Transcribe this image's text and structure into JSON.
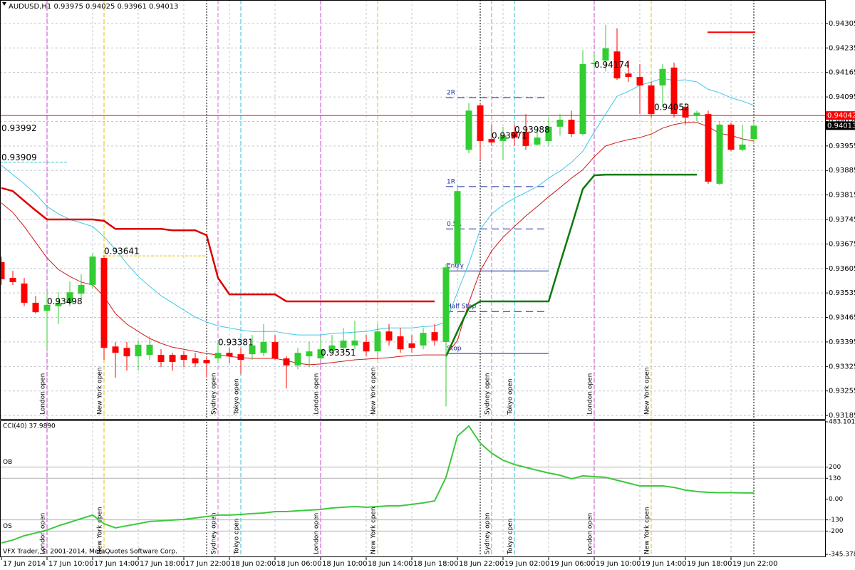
{
  "chart_data": [
    {
      "type": "candlestick",
      "title": "AUDUSD,H1 0.93975 0.94025 0.93961 0.94013",
      "categories": [
        "17 Jun 2014",
        null,
        null,
        null,
        "17 Jun 10:00",
        null,
        null,
        null,
        "17 Jun 14:00",
        null,
        null,
        null,
        "17 Jun 18:00",
        null,
        null,
        null,
        "17 Jun 22:00",
        null,
        null,
        null,
        "18 Jun 02:00",
        null,
        null,
        null,
        "18 Jun 06:00",
        null,
        null,
        null,
        "18 Jun 10:00",
        null,
        null,
        null,
        "18 Jun 14:00",
        null,
        null,
        null,
        "18 Jun 18:00",
        null,
        null,
        null,
        "18 Jun 22:00",
        null,
        null,
        null,
        "19 Jun 02:00",
        null,
        null,
        null,
        "19 Jun 06:00",
        null,
        null,
        null,
        "19 Jun 10:00",
        null,
        null,
        null,
        "19 Jun 14:00",
        null,
        null,
        null,
        "19 Jun 18:00",
        null,
        null,
        null,
        "19 Jun 22:00",
        null,
        null
      ],
      "open": [
        0.93623,
        0.93578,
        0.93562,
        0.93507,
        0.93484,
        0.93497,
        0.93507,
        0.93533,
        0.93558,
        0.93635,
        0.93382,
        0.93378,
        0.93354,
        0.93358,
        0.93358,
        0.93358,
        0.93358,
        0.93348,
        0.93344,
        0.93348,
        0.93364,
        0.9336,
        0.9336,
        0.93364,
        0.93395,
        0.93348,
        0.93328,
        0.93354,
        0.93348,
        0.9337,
        0.93378,
        0.93385,
        0.93395,
        0.93368,
        0.93425,
        0.93411,
        0.93391,
        0.93385,
        0.93423,
        0.93395,
        0.93619,
        0.93944,
        0.94071,
        0.93975,
        0.93969,
        0.93995,
        0.93995,
        0.93959,
        0.93969,
        0.9401,
        0.9403,
        0.93989,
        0.94189,
        0.94199,
        0.94225,
        0.94162,
        0.94152,
        0.94128,
        0.94128,
        0.94179,
        0.94067,
        0.94042,
        0.94046,
        0.93847,
        0.94016,
        0.93944,
        0.93975
      ],
      "high": [
        0.93639,
        0.93598,
        0.93578,
        0.93527,
        0.93537,
        0.93537,
        0.93568,
        0.93588,
        0.93649,
        0.93643,
        0.93395,
        0.93395,
        0.93399,
        0.93411,
        0.93374,
        0.93364,
        0.9337,
        0.93364,
        0.93354,
        0.93395,
        0.93378,
        0.93378,
        0.93415,
        0.93446,
        0.93415,
        0.93354,
        0.93378,
        0.93395,
        0.93405,
        0.93415,
        0.93435,
        0.93456,
        0.93415,
        0.93446,
        0.93446,
        0.93435,
        0.93415,
        0.93435,
        0.93446,
        0.93619,
        0.93843,
        0.94077,
        0.94077,
        0.94016,
        0.9401,
        0.94016,
        0.94046,
        0.94006,
        0.94036,
        0.94046,
        0.94056,
        0.94229,
        0.94219,
        0.94301,
        0.94291,
        0.94199,
        0.94189,
        0.94138,
        0.94189,
        0.94193,
        0.94077,
        0.94056,
        0.94056,
        0.94026,
        0.94022,
        0.94016,
        0.94025
      ],
      "low": [
        0.93558,
        0.93558,
        0.93497,
        0.93476,
        0.93374,
        0.93446,
        0.93497,
        0.93517,
        0.93547,
        0.93344,
        0.93293,
        0.93313,
        0.93313,
        0.93344,
        0.93323,
        0.93313,
        0.93323,
        0.93323,
        0.93293,
        0.93334,
        0.93334,
        0.93303,
        0.93344,
        0.93354,
        0.93344,
        0.93262,
        0.93317,
        0.93323,
        0.93344,
        0.93364,
        0.93364,
        0.93374,
        0.93354,
        0.93344,
        0.93385,
        0.93364,
        0.93364,
        0.93374,
        0.93385,
        0.93211,
        0.93598,
        0.93934,
        0.93914,
        0.93955,
        0.93914,
        0.93955,
        0.93944,
        0.93955,
        0.93955,
        0.93985,
        0.93981,
        0.93985,
        0.94179,
        0.94168,
        0.94144,
        0.94138,
        0.94046,
        0.94036,
        0.94067,
        0.94036,
        0.94016,
        0.94026,
        0.93847,
        0.93843,
        0.9394,
        0.9394,
        0.93961
      ],
      "close": [
        0.93574,
        0.93566,
        0.93507,
        0.9348,
        0.93501,
        0.93507,
        0.93537,
        0.93558,
        0.93639,
        0.93378,
        0.93364,
        0.93354,
        0.93387,
        0.93387,
        0.93338,
        0.93338,
        0.93344,
        0.93334,
        0.93334,
        0.93364,
        0.93354,
        0.93344,
        0.93385,
        0.93395,
        0.93348,
        0.93328,
        0.93364,
        0.93368,
        0.93374,
        0.93385,
        0.93399,
        0.93399,
        0.93368,
        0.93425,
        0.93399,
        0.93374,
        0.93378,
        0.93421,
        0.93399,
        0.93608,
        0.93826,
        0.94056,
        0.93969,
        0.93965,
        0.93985,
        0.93979,
        0.93955,
        0.93979,
        0.9401,
        0.9403,
        0.93989,
        0.94189,
        0.94193,
        0.94234,
        0.94148,
        0.94152,
        0.94128,
        0.94046,
        0.94175,
        0.94046,
        0.94036,
        0.9405,
        0.93853,
        0.94016,
        0.93944,
        0.93959,
        0.94013
      ],
      "up_color": "#32cd32",
      "down_color": "#ff0000",
      "series": [
        {
          "color": "#3cc8e6",
          "width": 1,
          "values": [
            0.939,
            0.93873,
            0.93847,
            0.93818,
            0.93782,
            0.93761,
            0.93745,
            0.93735,
            0.93725,
            0.93696,
            0.93659,
            0.93619,
            0.93582,
            0.93554,
            0.93527,
            0.93507,
            0.93486,
            0.93466,
            0.93452,
            0.93441,
            0.93435,
            0.93429,
            0.93425,
            0.93425,
            0.93425,
            0.93419,
            0.93415,
            0.93415,
            0.93415,
            0.93419,
            0.93421,
            0.93423,
            0.93425,
            0.93431,
            0.93435,
            0.93435,
            0.93435,
            0.93439,
            0.93441,
            0.93452,
            0.93537,
            0.93619,
            0.93716,
            0.93761,
            0.93786,
            0.93806,
            0.93822,
            0.93839,
            0.93863,
            0.93883,
            0.93908,
            0.9394,
            0.93995,
            0.94046,
            0.94097,
            0.94111,
            0.94128,
            0.94138,
            0.94148,
            0.94142,
            0.94144,
            0.94138,
            0.94117,
            0.94107,
            0.94093,
            0.94083,
            0.94071
          ]
        },
        {
          "color": "#d01818",
          "width": 1,
          "values": [
            0.93792,
            0.93765,
            0.93725,
            0.9368,
            0.93635,
            0.93602,
            0.93582,
            0.93566,
            0.93558,
            0.93525,
            0.93476,
            0.93446,
            0.93425,
            0.93405,
            0.93391,
            0.9338,
            0.93374,
            0.93368,
            0.93362,
            0.93358,
            0.93354,
            0.9335,
            0.93348,
            0.93348,
            0.93348,
            0.93342,
            0.93334,
            0.9333,
            0.93332,
            0.93336,
            0.9334,
            0.93344,
            0.93346,
            0.93348,
            0.9335,
            0.93354,
            0.93356,
            0.93358,
            0.93358,
            0.93358,
            0.93399,
            0.93507,
            0.93598,
            0.93655,
            0.93694,
            0.93725,
            0.93755,
            0.93782,
            0.9381,
            0.93836,
            0.93863,
            0.93887,
            0.93924,
            0.93955,
            0.93965,
            0.93973,
            0.93979,
            0.93989,
            0.94006,
            0.94016,
            0.94022,
            0.94022,
            0.9401,
            0.93991,
            0.93985,
            0.93975,
            0.93969
          ]
        },
        {
          "color": "#dd0000",
          "width": 2.5,
          "values": [
            0.93835,
            0.93826,
            0.93798,
            0.93771,
            0.93745,
            0.93745,
            0.93745,
            0.93745,
            0.93745,
            0.93741,
            0.93718,
            0.93718,
            0.93718,
            0.93718,
            0.93718,
            0.93714,
            0.93714,
            0.93714,
            0.937,
            0.93578,
            0.93531,
            0.93531,
            0.93531,
            0.93531,
            0.93531,
            0.93511,
            0.93511,
            0.93511,
            0.93511,
            0.93511,
            0.93511,
            0.93511,
            0.93511,
            0.93511,
            0.93511,
            0.93511,
            0.93511,
            0.93511,
            0.93511,
            null,
            null,
            null,
            null,
            null,
            null,
            null,
            null,
            null,
            null,
            null,
            null,
            null,
            null,
            null,
            null,
            null,
            null,
            null,
            null,
            null,
            null,
            null,
            null,
            null,
            null,
            null,
            null
          ]
        },
        {
          "color": "#0a7a0a",
          "width": 2.5,
          "values": [
            null,
            null,
            null,
            null,
            null,
            null,
            null,
            null,
            null,
            null,
            null,
            null,
            null,
            null,
            null,
            null,
            null,
            null,
            null,
            null,
            null,
            null,
            null,
            null,
            null,
            null,
            null,
            null,
            null,
            null,
            null,
            null,
            null,
            null,
            null,
            null,
            null,
            null,
            null,
            0.93354,
            0.93425,
            0.93492,
            0.93511,
            0.93511,
            0.93511,
            0.93511,
            0.93511,
            0.93511,
            0.93511,
            0.93619,
            0.93725,
            0.93832,
            0.93871,
            0.93873,
            0.93873,
            0.93873,
            0.93873,
            0.93873,
            0.93873,
            0.93873,
            0.93873,
            0.93873,
            null,
            null,
            null,
            null,
            null
          ]
        }
      ],
      "ylim": [
        0.93175,
        0.94372
      ],
      "yticks": [
        0.94305,
        0.94235,
        0.94165,
        0.94095,
        0.94025,
        0.93955,
        0.93885,
        0.93815,
        0.93745,
        0.93675,
        0.93605,
        0.93535,
        0.93465,
        0.93395,
        0.93325,
        0.93255,
        0.93185
      ],
      "grid": true,
      "price_line": {
        "value": 0.94042,
        "color": "#ff0000"
      },
      "target": {
        "value": 0.9428,
        "color": "#ff0000"
      },
      "trade_levels": [
        {
          "label": "2R",
          "value": 0.94093,
          "dashed": true
        },
        {
          "label": "1R",
          "value": 0.93839,
          "dashed": true
        },
        {
          "label": "0.5R",
          "value": 0.93718,
          "dashed": true
        },
        {
          "label": "Entry",
          "value": 0.93598,
          "dashed": false
        },
        {
          "label": "Half Stop",
          "value": 0.93482,
          "dashed": true
        },
        {
          "label": "Stop",
          "value": 0.93362,
          "dashed": false
        }
      ],
      "annotations": [
        0.93992,
        0.93909,
        0.93641,
        0.93498,
        0.93381,
        0.93351,
        0.93971,
        0.93988,
        0.94174,
        0.94052
      ],
      "sessions": [
        "London open",
        "New York open",
        "Sydney open",
        "Tokyo open",
        "London open",
        "New York open",
        "Sydney open",
        "Tokyo open",
        "London open",
        "New York open"
      ],
      "copyright": "VFX Trader, © 2001-2014, MetaQuotes Software Corp."
    },
    {
      "type": "line",
      "title": "CCI(40) 37.9890",
      "color": "#3cc83c",
      "values": [
        -274,
        -256,
        -229,
        -212,
        -194,
        -167,
        -145,
        -122,
        -100,
        -154,
        -180,
        -167,
        -154,
        -140,
        -136,
        -131,
        -127,
        -118,
        -109,
        -100,
        -100,
        -96,
        -91,
        -87,
        -78,
        -78,
        -73,
        -69,
        -65,
        -56,
        -51,
        -47,
        -51,
        -47,
        -42,
        -42,
        -33,
        -24,
        -11,
        136,
        394,
        457,
        350,
        287,
        243,
        216,
        198,
        180,
        163,
        149,
        127,
        145,
        140,
        136,
        118,
        100,
        82,
        82,
        82,
        73,
        56,
        47,
        42,
        40,
        40,
        39,
        37.989
      ],
      "ylim": [
        -345.3783,
        483.1012
      ],
      "yticks": [
        483.1012,
        200,
        130,
        {
          "value": 0,
          "label": "0.00"
        },
        -130,
        -200,
        -345.3783
      ],
      "levels": [
        {
          "value": 200,
          "label": "OB"
        },
        {
          "value": -200,
          "label": "OS"
        }
      ]
    }
  ]
}
